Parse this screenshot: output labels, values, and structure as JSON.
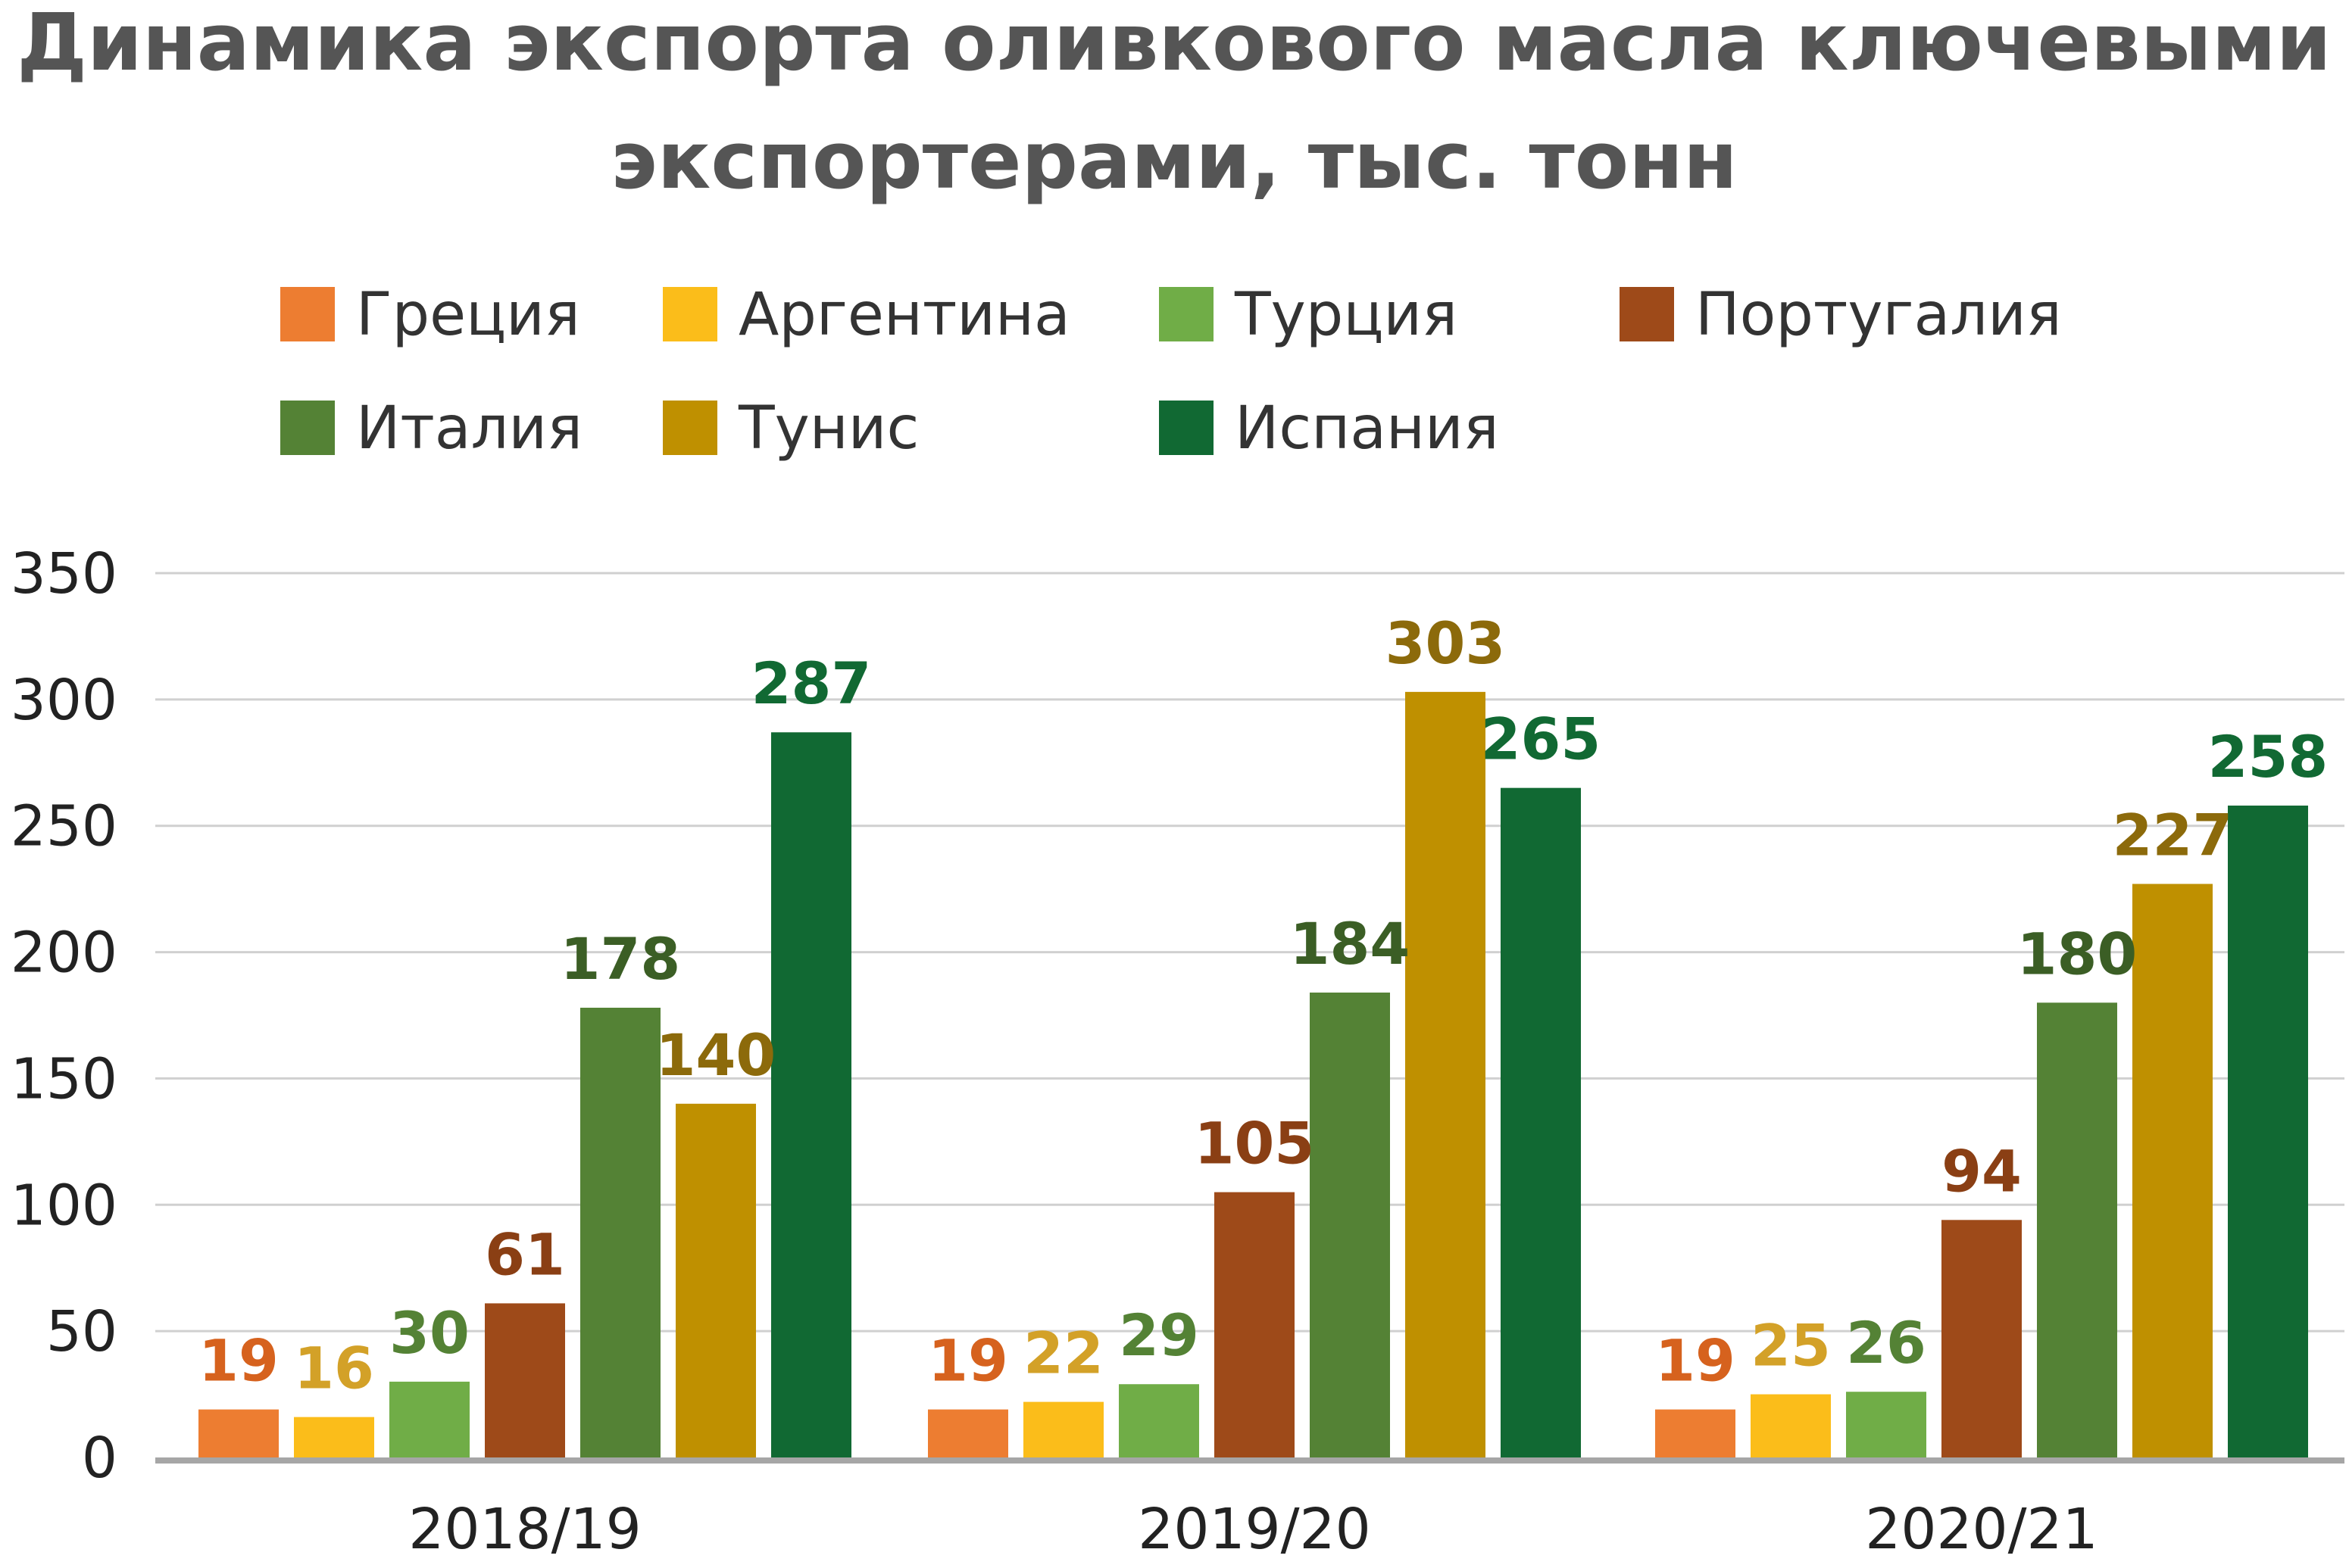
{
  "chart_data": {
    "type": "bar",
    "title": "Динамика экспорта оливкового масла ключевыми экспортерами, тыс. тонн",
    "title_lines": [
      "Динамика экспорта оливкового масла ключевыми",
      "экспортерами, тыс. тонн"
    ],
    "categories": [
      "2018/19",
      "2019/20",
      "2020/21"
    ],
    "ylim": [
      0,
      350
    ],
    "yticks": [
      0,
      50,
      100,
      150,
      200,
      250,
      300,
      350
    ],
    "grid": true,
    "legend_position": "top",
    "series": [
      {
        "name": "Греция",
        "color": "#ED7D31",
        "label_color": "#D6621E",
        "values": [
          19,
          19,
          19
        ]
      },
      {
        "name": "Аргентина",
        "color": "#FBBD1A",
        "label_color": "#D3A128",
        "values": [
          16,
          22,
          25
        ]
      },
      {
        "name": "Турция",
        "color": "#70AD47",
        "label_color": "#548235",
        "values": [
          30,
          29,
          26
        ]
      },
      {
        "name": "Португалия",
        "color": "#9E4A19",
        "label_color": "#8A3F14",
        "values": [
          61,
          105,
          94
        ]
      },
      {
        "name": "Италия",
        "color": "#548235",
        "label_color": "#3B5E25",
        "values": [
          178,
          184,
          180
        ]
      },
      {
        "name": "Тунис",
        "color": "#BF9000",
        "label_color": "#8C6A0B",
        "values": [
          140,
          303,
          227
        ]
      },
      {
        "name": "Испания",
        "color": "#116933",
        "label_color": "#116933",
        "values": [
          287,
          265,
          258
        ]
      }
    ]
  }
}
